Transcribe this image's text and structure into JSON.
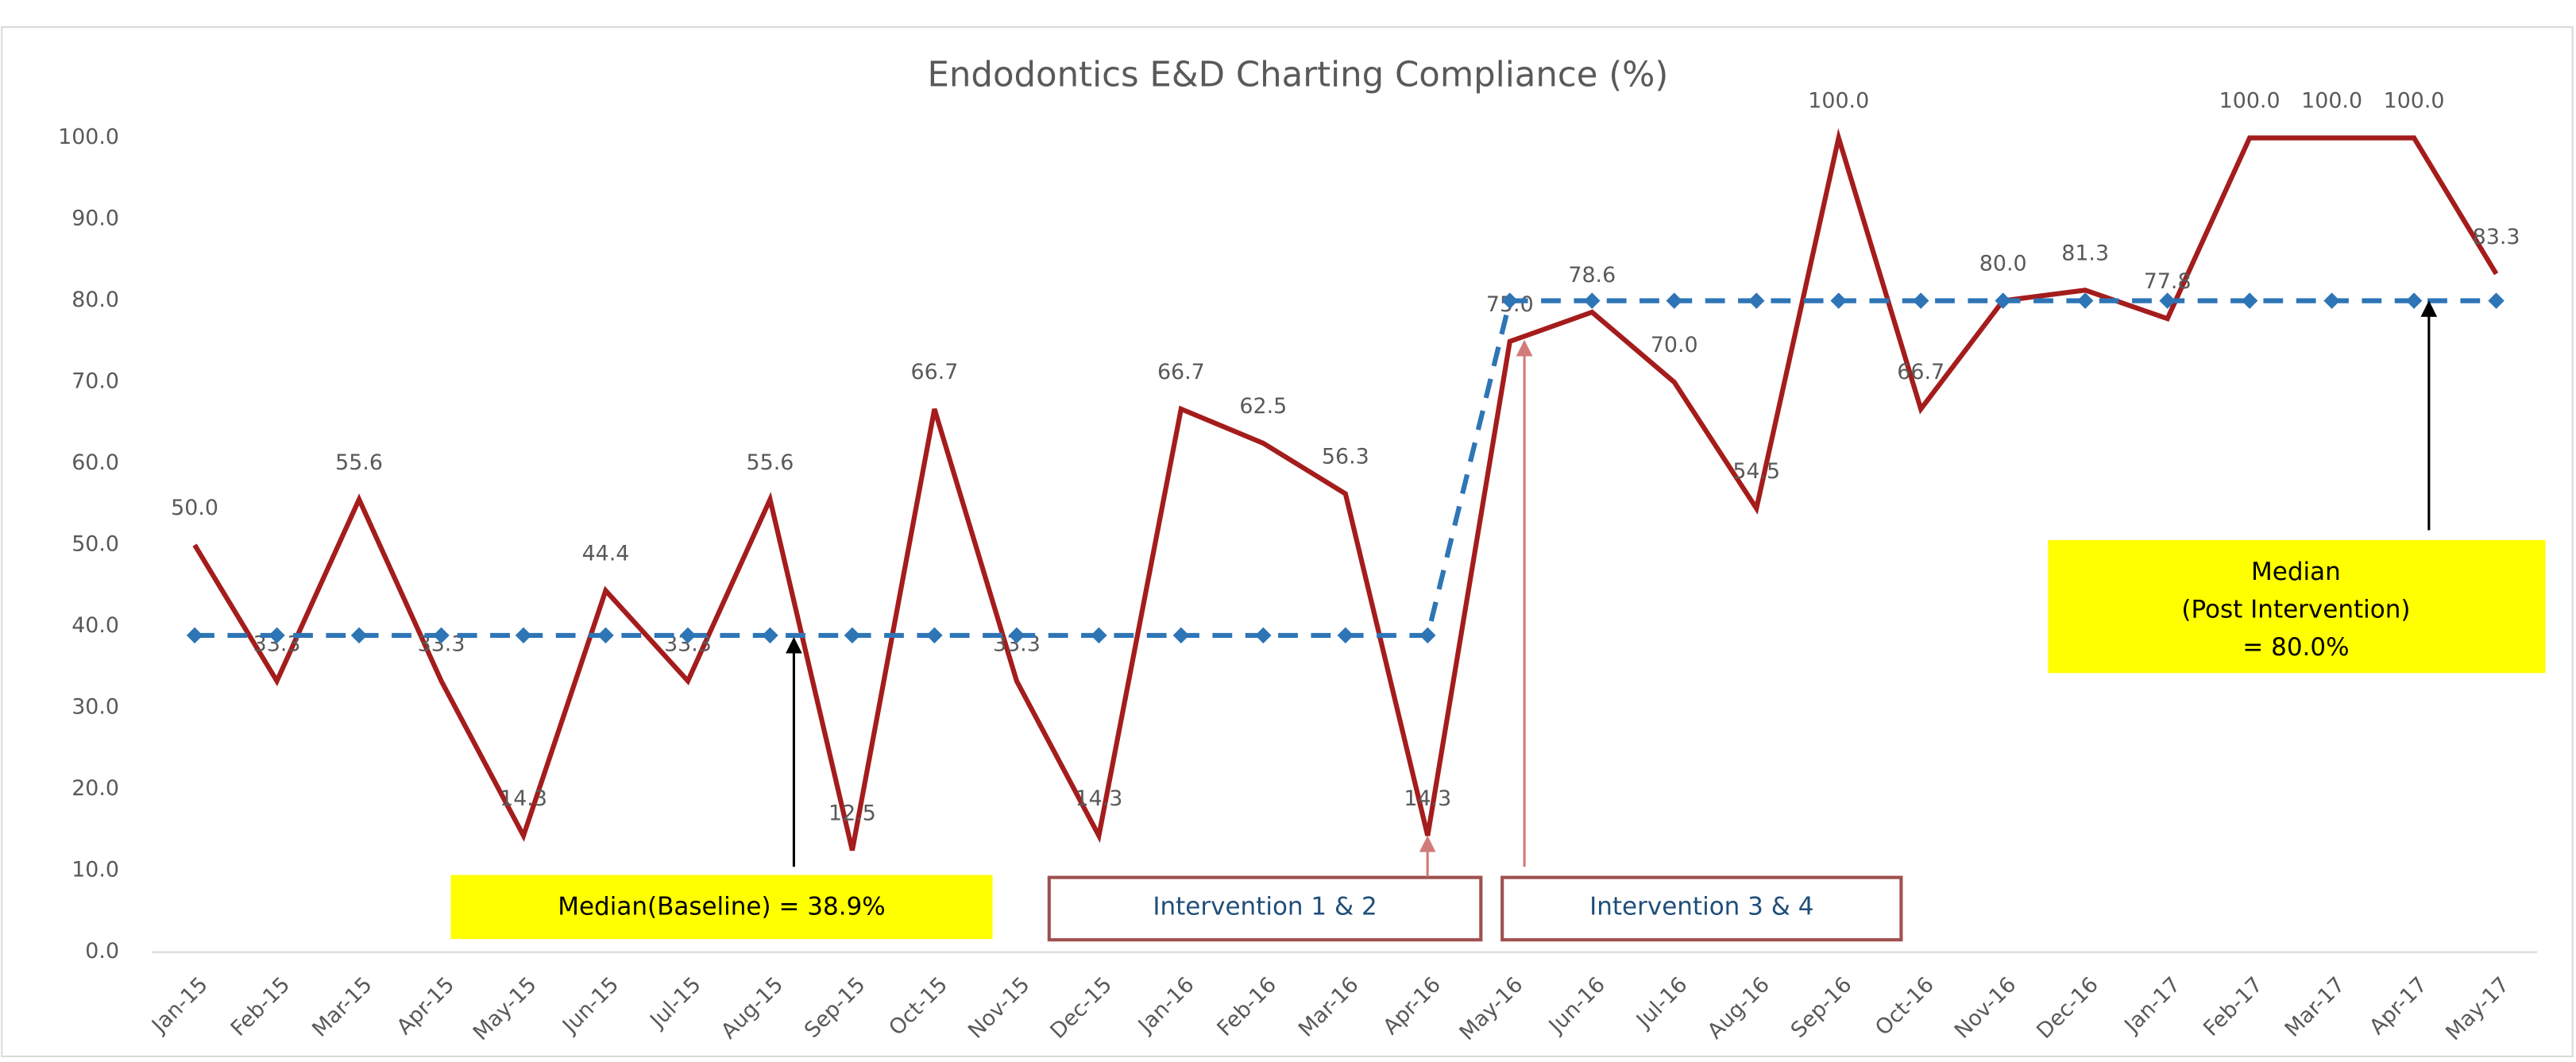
{
  "chart_data": {
    "type": "line",
    "title": "Endodontics E&D Charting Compliance (%)",
    "categories": [
      "Jan-15",
      "Feb-15",
      "Mar-15",
      "Apr-15",
      "May-15",
      "Jun-15",
      "Jul-15",
      "Aug-15",
      "Sep-15",
      "Oct-15",
      "Nov-15",
      "Dec-15",
      "Jan-16",
      "Feb-16",
      "Mar-16",
      "Apr-16",
      "May-16",
      "Jun-16",
      "Jul-16",
      "Aug-16",
      "Sep-16",
      "Oct-16",
      "Nov-16",
      "Dec-16",
      "Jan-17",
      "Feb-17",
      "Mar-17",
      "Apr-17",
      "May-17"
    ],
    "series": [
      {
        "color": "#a51c1c",
        "values": [
          50.0,
          33.3,
          55.6,
          33.3,
          14.3,
          44.4,
          33.3,
          55.6,
          12.5,
          66.7,
          33.3,
          14.3,
          66.7,
          62.5,
          56.3,
          14.3,
          75.0,
          78.6,
          70.0,
          54.5,
          100.0,
          66.7,
          80.0,
          81.3,
          77.8,
          100.0,
          100.0,
          100.0,
          83.3
        ],
        "value_labels": [
          "50.0",
          "33.3",
          "55.6",
          "33.3",
          "14.3",
          "44.4",
          "33.3",
          "55.6",
          "12.5",
          "66.7",
          "33.3",
          "14.3",
          "66.7",
          "62.5",
          "56.3",
          "14.3",
          "75.0",
          "78.6",
          "70.0",
          "54.5",
          "100.0",
          "66.7",
          "80.0",
          "81.3",
          "77.8",
          "100.0",
          "100.0",
          "100.0",
          "83.3"
        ]
      },
      {
        "color": "#2e75b6",
        "dashed": true,
        "values": [
          38.9,
          38.9,
          38.9,
          38.9,
          38.9,
          38.9,
          38.9,
          38.9,
          38.9,
          38.9,
          38.9,
          38.9,
          38.9,
          38.9,
          38.9,
          38.9,
          80.0,
          80.0,
          80.0,
          80.0,
          80.0,
          80.0,
          80.0,
          80.0,
          80.0,
          80.0,
          80.0,
          80.0,
          80.0
        ]
      }
    ],
    "ylim": [
      0,
      100
    ],
    "yticks": [
      {
        "value": 0,
        "label": "0.0"
      },
      {
        "value": 10,
        "label": "10.0"
      },
      {
        "value": 20,
        "label": "20.0"
      },
      {
        "value": 30,
        "label": "30.0"
      },
      {
        "value": 40,
        "label": "40.0"
      },
      {
        "value": 50,
        "label": "50.0"
      },
      {
        "value": 60,
        "label": "60.0"
      },
      {
        "value": 70,
        "label": "70.0"
      },
      {
        "value": 80,
        "label": "80.0"
      },
      {
        "value": 90,
        "label": "90.0"
      },
      {
        "value": 100,
        "label": "100.0"
      }
    ],
    "annotations": [
      "Median(Baseline)  = 38.9%",
      "Intervention 1 & 2",
      "Intervention 3 & 4",
      [
        "Median",
        "(Post Intervention)",
        "= 80.0%"
      ]
    ]
  }
}
